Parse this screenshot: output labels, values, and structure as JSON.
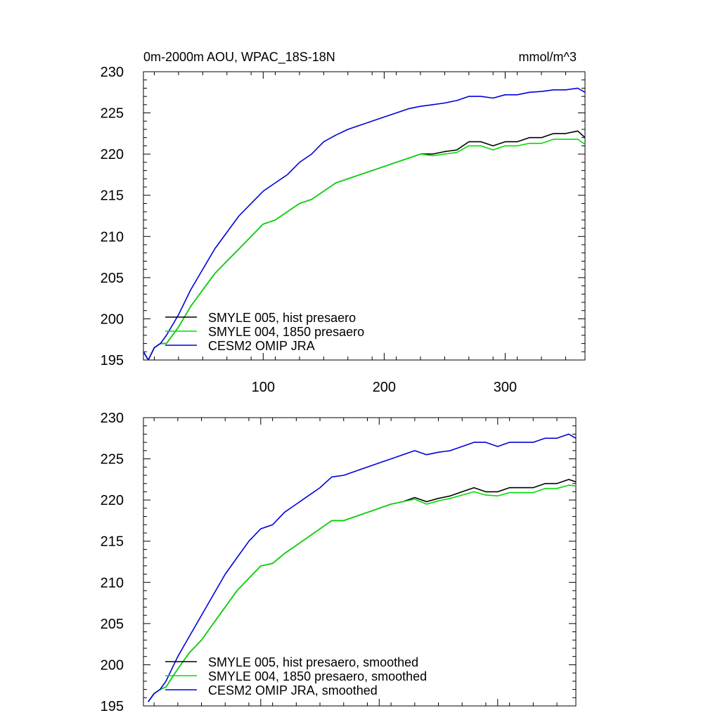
{
  "chart_data": [
    {
      "type": "line",
      "title": "0m-2000m AOU, WPAC_18S-18N",
      "units": "mmol/m^3",
      "xlim": [
        1,
        366
      ],
      "ylim": [
        195,
        230
      ],
      "x_ticks": [
        100,
        200,
        300
      ],
      "x_tick_labels": [
        "100",
        "200",
        "300"
      ],
      "y_ticks": [
        195,
        200,
        205,
        210,
        215,
        220,
        225,
        230
      ],
      "y_tick_labels": [
        "195",
        "200",
        "205",
        "210",
        "215",
        "220",
        "225",
        "230"
      ],
      "grid": false,
      "legend_position": "bottom-left",
      "series": [
        {
          "name": "SMYLE 005, hist presaero",
          "color": "#000000",
          "points": [
            [
              1,
              196
            ],
            [
              5,
              195
            ],
            [
              10,
              196.5
            ],
            [
              15,
              197
            ],
            [
              20,
              197
            ],
            [
              30,
              199
            ],
            [
              40,
              201.5
            ],
            [
              50,
              203.5
            ],
            [
              60,
              205.5
            ],
            [
              70,
              207
            ],
            [
              80,
              208.5
            ],
            [
              90,
              210
            ],
            [
              100,
              211.5
            ],
            [
              110,
              212
            ],
            [
              120,
              213
            ],
            [
              130,
              214
            ],
            [
              140,
              214.5
            ],
            [
              150,
              215.5
            ],
            [
              160,
              216.5
            ],
            [
              170,
              217
            ],
            [
              180,
              217.5
            ],
            [
              190,
              218
            ],
            [
              200,
              218.5
            ],
            [
              210,
              219
            ],
            [
              220,
              219.5
            ],
            [
              230,
              220
            ],
            [
              240,
              220
            ],
            [
              250,
              220.3
            ],
            [
              260,
              220.5
            ],
            [
              270,
              221.5
            ],
            [
              280,
              221.5
            ],
            [
              290,
              221
            ],
            [
              300,
              221.5
            ],
            [
              310,
              221.5
            ],
            [
              320,
              222
            ],
            [
              330,
              222
            ],
            [
              340,
              222.5
            ],
            [
              350,
              222.5
            ],
            [
              360,
              222.8
            ],
            [
              366,
              222
            ]
          ]
        },
        {
          "name": "SMYLE 004, 1850 presaero",
          "color": "#00dd00",
          "points": [
            [
              1,
              196
            ],
            [
              5,
              195
            ],
            [
              10,
              196.5
            ],
            [
              15,
              197
            ],
            [
              20,
              197
            ],
            [
              30,
              199
            ],
            [
              40,
              201.5
            ],
            [
              50,
              203.5
            ],
            [
              60,
              205.5
            ],
            [
              70,
              207
            ],
            [
              80,
              208.5
            ],
            [
              90,
              210
            ],
            [
              100,
              211.5
            ],
            [
              110,
              212
            ],
            [
              120,
              213
            ],
            [
              130,
              214
            ],
            [
              140,
              214.5
            ],
            [
              150,
              215.5
            ],
            [
              160,
              216.5
            ],
            [
              170,
              217
            ],
            [
              180,
              217.5
            ],
            [
              190,
              218
            ],
            [
              200,
              218.5
            ],
            [
              210,
              219
            ],
            [
              220,
              219.5
            ],
            [
              230,
              220
            ],
            [
              240,
              219.8
            ],
            [
              250,
              220
            ],
            [
              260,
              220.2
            ],
            [
              270,
              221
            ],
            [
              280,
              221
            ],
            [
              290,
              220.5
            ],
            [
              300,
              221
            ],
            [
              310,
              221
            ],
            [
              320,
              221.3
            ],
            [
              330,
              221.3
            ],
            [
              340,
              221.8
            ],
            [
              350,
              221.8
            ],
            [
              360,
              221.8
            ],
            [
              366,
              221.2
            ]
          ]
        },
        {
          "name": "CESM2 OMIP JRA",
          "color": "#0000dd",
          "points": [
            [
              1,
              196
            ],
            [
              5,
              195
            ],
            [
              10,
              196.5
            ],
            [
              15,
              197
            ],
            [
              20,
              198
            ],
            [
              30,
              200.5
            ],
            [
              40,
              203.5
            ],
            [
              50,
              206
            ],
            [
              60,
              208.5
            ],
            [
              70,
              210.5
            ],
            [
              80,
              212.5
            ],
            [
              90,
              214
            ],
            [
              100,
              215.5
            ],
            [
              110,
              216.5
            ],
            [
              120,
              217.5
            ],
            [
              130,
              219
            ],
            [
              140,
              220
            ],
            [
              150,
              221.5
            ],
            [
              160,
              222.3
            ],
            [
              170,
              223
            ],
            [
              180,
              223.5
            ],
            [
              190,
              224
            ],
            [
              200,
              224.5
            ],
            [
              210,
              225
            ],
            [
              220,
              225.5
            ],
            [
              230,
              225.8
            ],
            [
              240,
              226
            ],
            [
              250,
              226.2
            ],
            [
              260,
              226.5
            ],
            [
              270,
              227
            ],
            [
              280,
              227
            ],
            [
              290,
              226.8
            ],
            [
              300,
              227.2
            ],
            [
              310,
              227.2
            ],
            [
              320,
              227.5
            ],
            [
              330,
              227.6
            ],
            [
              340,
              227.8
            ],
            [
              350,
              227.8
            ],
            [
              360,
              228
            ],
            [
              366,
              227.5
            ]
          ]
        }
      ]
    },
    {
      "type": "line",
      "xlim": [
        1,
        366
      ],
      "ylim": [
        195,
        230
      ],
      "x_ticks": [
        100,
        200,
        300
      ],
      "x_tick_labels": [],
      "y_ticks": [
        195,
        200,
        205,
        210,
        215,
        220,
        225,
        230
      ],
      "y_tick_labels": [
        "195",
        "200",
        "205",
        "210",
        "215",
        "220",
        "225",
        "230"
      ],
      "grid": false,
      "legend_position": "bottom-left",
      "series": [
        {
          "name": "SMYLE 005, hist presaero, smoothed",
          "color": "#000000",
          "points": [
            [
              5,
              195.5
            ],
            [
              10,
              196.5
            ],
            [
              15,
              197
            ],
            [
              20,
              197.3
            ],
            [
              30,
              199.5
            ],
            [
              40,
              201.5
            ],
            [
              50,
              203
            ],
            [
              60,
              205
            ],
            [
              70,
              207
            ],
            [
              80,
              209
            ],
            [
              90,
              210.5
            ],
            [
              100,
              212
            ],
            [
              110,
              212.3
            ],
            [
              120,
              213.5
            ],
            [
              130,
              214.5
            ],
            [
              140,
              215.5
            ],
            [
              150,
              216.5
            ],
            [
              160,
              217.5
            ],
            [
              170,
              217.5
            ],
            [
              180,
              218
            ],
            [
              190,
              218.5
            ],
            [
              200,
              219
            ],
            [
              210,
              219.5
            ],
            [
              220,
              219.8
            ],
            [
              230,
              220.3
            ],
            [
              240,
              219.8
            ],
            [
              250,
              220.2
            ],
            [
              260,
              220.5
            ],
            [
              270,
              221
            ],
            [
              280,
              221.5
            ],
            [
              290,
              221
            ],
            [
              300,
              221
            ],
            [
              310,
              221.5
            ],
            [
              320,
              221.5
            ],
            [
              330,
              221.5
            ],
            [
              340,
              222
            ],
            [
              350,
              222
            ],
            [
              360,
              222.5
            ],
            [
              366,
              222.2
            ]
          ]
        },
        {
          "name": "SMYLE 004, 1850 presaero, smoothed",
          "color": "#00dd00",
          "points": [
            [
              5,
              195.5
            ],
            [
              10,
              196.5
            ],
            [
              15,
              197
            ],
            [
              20,
              197.3
            ],
            [
              30,
              199.5
            ],
            [
              40,
              201.5
            ],
            [
              50,
              203
            ],
            [
              60,
              205
            ],
            [
              70,
              207
            ],
            [
              80,
              209
            ],
            [
              90,
              210.5
            ],
            [
              100,
              212
            ],
            [
              110,
              212.3
            ],
            [
              120,
              213.5
            ],
            [
              130,
              214.5
            ],
            [
              140,
              215.5
            ],
            [
              150,
              216.5
            ],
            [
              160,
              217.5
            ],
            [
              170,
              217.5
            ],
            [
              180,
              218
            ],
            [
              190,
              218.5
            ],
            [
              200,
              219
            ],
            [
              210,
              219.5
            ],
            [
              220,
              219.8
            ],
            [
              230,
              220.1
            ],
            [
              240,
              219.5
            ],
            [
              250,
              219.9
            ],
            [
              260,
              220.2
            ],
            [
              270,
              220.6
            ],
            [
              280,
              221
            ],
            [
              290,
              220.6
            ],
            [
              300,
              220.5
            ],
            [
              310,
              220.9
            ],
            [
              320,
              220.9
            ],
            [
              330,
              220.9
            ],
            [
              340,
              221.4
            ],
            [
              350,
              221.4
            ],
            [
              360,
              221.8
            ],
            [
              366,
              221.7
            ]
          ]
        },
        {
          "name": "CESM2 OMIP JRA, smoothed",
          "color": "#0000dd",
          "points": [
            [
              5,
              195.5
            ],
            [
              10,
              196.5
            ],
            [
              15,
              197
            ],
            [
              20,
              198
            ],
            [
              30,
              201
            ],
            [
              40,
              203.5
            ],
            [
              50,
              206
            ],
            [
              60,
              208.5
            ],
            [
              70,
              211
            ],
            [
              80,
              213
            ],
            [
              90,
              215
            ],
            [
              100,
              216.5
            ],
            [
              110,
              217
            ],
            [
              120,
              218.5
            ],
            [
              130,
              219.5
            ],
            [
              140,
              220.5
            ],
            [
              150,
              221.5
            ],
            [
              160,
              222.8
            ],
            [
              170,
              223
            ],
            [
              180,
              223.5
            ],
            [
              190,
              224
            ],
            [
              200,
              224.5
            ],
            [
              210,
              225
            ],
            [
              220,
              225.5
            ],
            [
              230,
              226
            ],
            [
              240,
              225.5
            ],
            [
              250,
              225.8
            ],
            [
              260,
              226
            ],
            [
              270,
              226.5
            ],
            [
              280,
              227
            ],
            [
              290,
              227
            ],
            [
              300,
              226.5
            ],
            [
              310,
              227
            ],
            [
              320,
              227
            ],
            [
              330,
              227
            ],
            [
              340,
              227.5
            ],
            [
              350,
              227.5
            ],
            [
              360,
              228
            ],
            [
              366,
              227.5
            ]
          ]
        }
      ]
    }
  ]
}
